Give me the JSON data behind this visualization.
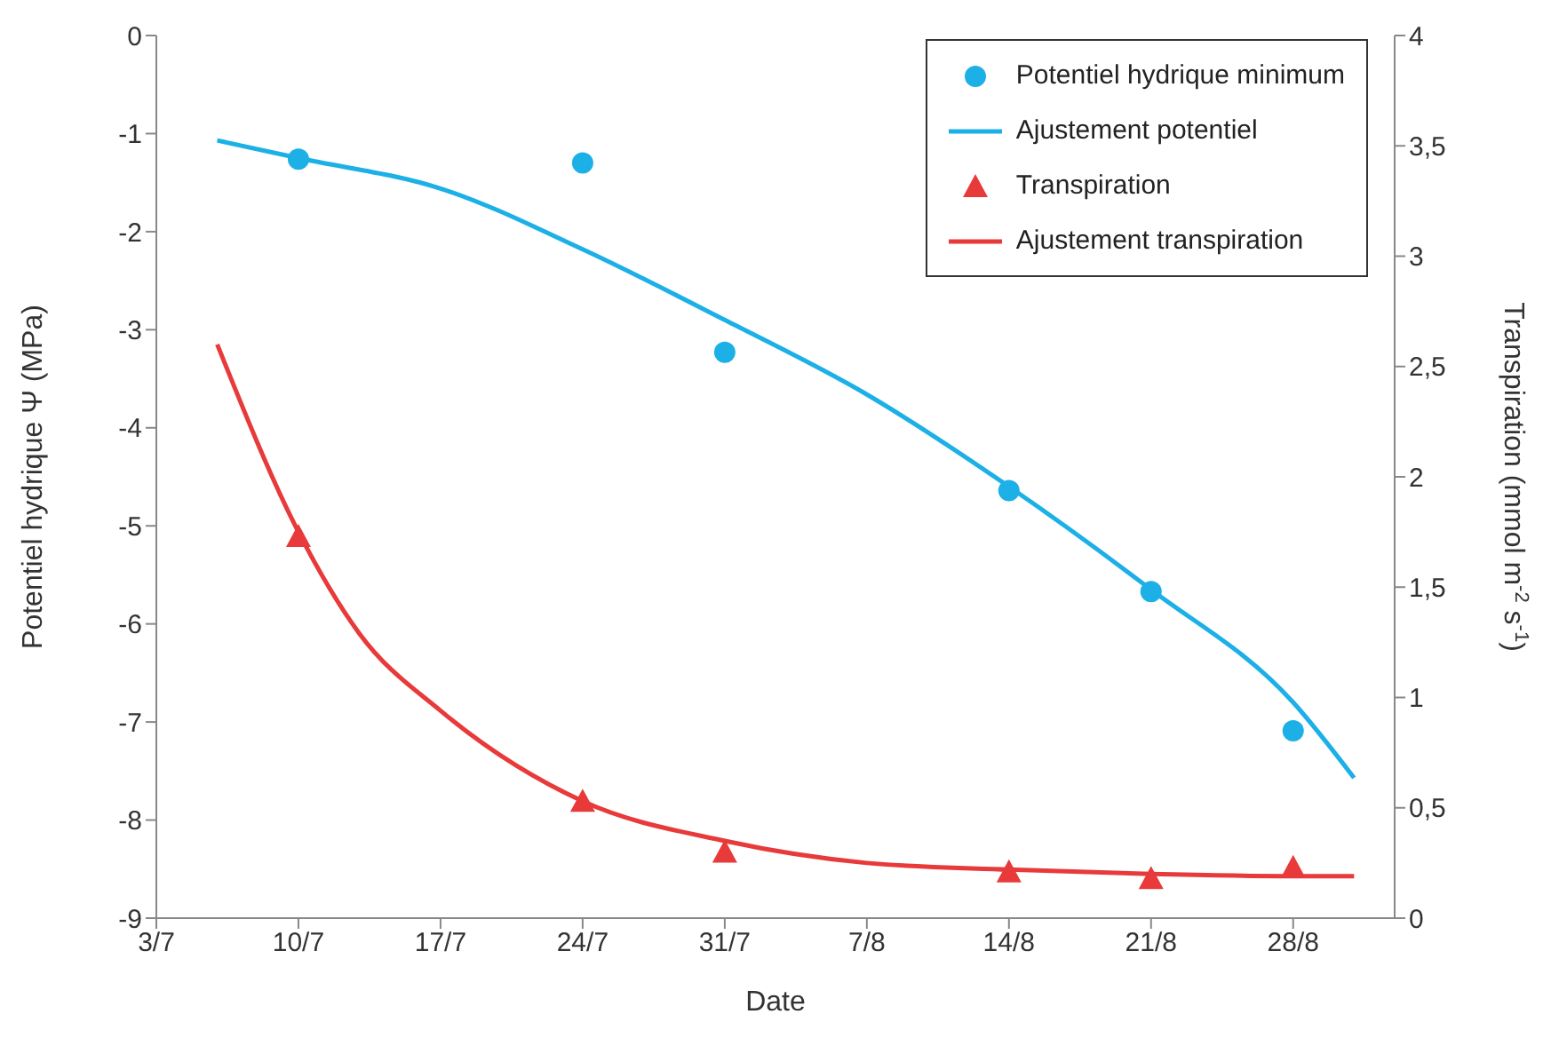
{
  "chart_data": {
    "type": "scatter",
    "xlabel": "Date",
    "ylabel": "Potentiel  hydrique Ψ (MPa)",
    "y2label": "Transpiration (mmol m$^{-2}$ s$^{-1}$)",
    "xlim": [
      "--07-03",
      "--09-02"
    ],
    "xticks": [
      {
        "value": "--07-03",
        "label": "3/7"
      },
      {
        "value": "--07-10",
        "label": "10/7"
      },
      {
        "value": "--07-17",
        "label": "17/7"
      },
      {
        "value": "--07-24",
        "label": "24/7"
      },
      {
        "value": "--07-31",
        "label": "31/7"
      },
      {
        "value": "--08-07",
        "label": "7/8"
      },
      {
        "value": "--08-14",
        "label": "14/8"
      },
      {
        "value": "--08-21",
        "label": "21/8"
      },
      {
        "value": "--08-28",
        "label": "28/8"
      }
    ],
    "ylim": [
      -9,
      0
    ],
    "yticks": [
      -9,
      -8,
      -7,
      -6,
      -5,
      -4,
      -3,
      -2,
      -1,
      0
    ],
    "y2lim": [
      0,
      4
    ],
    "y2ticks": [
      0,
      {
        "value": 0.5,
        "label": "0,5"
      },
      1,
      {
        "value": 1.5,
        "label": "1,5"
      },
      2,
      {
        "value": 2.5,
        "label": "2,5"
      },
      3,
      {
        "value": 3.5,
        "label": "3,5"
      },
      4
    ],
    "grid": false,
    "legend": "top right",
    "series": [
      {
        "name": "Potentiel hydrique minimum",
        "marker": "circle",
        "color": "#1cb0e6",
        "x": [
          "--07-10",
          "--07-24",
          "--07-31",
          "--08-14",
          "--08-21",
          "--08-28"
        ],
        "values": [
          -1.26,
          -1.3,
          -3.23,
          -4.64,
          -5.67,
          -7.09
        ]
      },
      {
        "name": "Ajustement potentiel",
        "type": "line",
        "color": "#1cb0e6",
        "x": [
          "--07-06",
          "--07-10",
          "--07-17",
          "--07-24",
          "--07-31",
          "--08-07",
          "--08-14",
          "--08-21",
          "--08-28",
          "--08-31"
        ],
        "values": [
          -1.07,
          -1.25,
          -1.56,
          -2.18,
          -2.9,
          -3.66,
          -4.6,
          -5.65,
          -6.8,
          -7.57
        ]
      },
      {
        "name": "Transpiration",
        "marker": "triangle",
        "axis": "y2",
        "color": "#e83a3a",
        "x": [
          "--07-10",
          "--07-24",
          "--07-31",
          "--08-14",
          "--08-21",
          "--08-28"
        ],
        "values": [
          1.73,
          0.53,
          0.3,
          0.21,
          0.18,
          0.23
        ]
      },
      {
        "name": "Ajustement transpiration",
        "type": "line",
        "axis": "y2",
        "color": "#e83a3a",
        "x": [
          "--07-06",
          "--07-10",
          "--07-13",
          "--07-17",
          "--07-24",
          "--07-31",
          "--08-07",
          "--08-14",
          "--08-21",
          "--08-28",
          "--08-31"
        ],
        "values": [
          2.6,
          1.75,
          1.29,
          0.94,
          0.53,
          0.35,
          0.25,
          0.22,
          0.2,
          0.19,
          0.19
        ]
      }
    ]
  }
}
